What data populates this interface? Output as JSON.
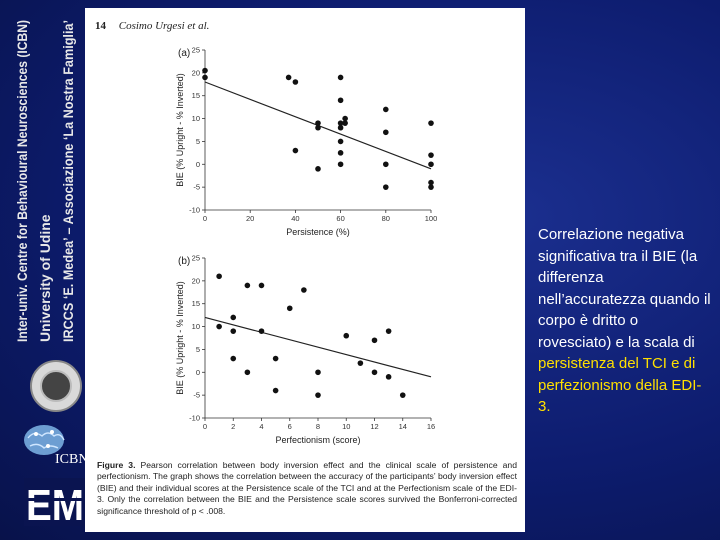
{
  "sidebar": {
    "lines": [
      "Inter-univ. Centre for Behavioural Neurosciences (ICBN)",
      "University of Udine",
      "IRCCS ‘E. Medea’ – Associazione ‘La Nostra Famiglia’"
    ],
    "icbn_logo_text": "ICBN",
    "em_logo_text": "EM",
    "seal_icon": "university-seal-icon",
    "brain_icon": "brain-logo-icon"
  },
  "paper": {
    "page_number": "14",
    "author": "Cosimo Urgesi et al.",
    "caption_label": "Figure 3.",
    "caption_text": "Pearson correlation between body inversion effect and the clinical scale of persistence and perfectionism. The graph shows the correlation between the accuracy of the participants’ body inversion effect (BIE) and their individual scores at the Persistence scale of the TCI and at the Perfectionism scale of the EDI-3. Only the correlation between the BIE and the Persistence scale scores survived the Bonferroni-corrected significance threshold of p < .008."
  },
  "chart_data": [
    {
      "type": "scatter",
      "panel": "(a)",
      "xlabel": "Persistence (%)",
      "ylabel": "BIE (% Upright - % Inverted)",
      "xlim": [
        0,
        100
      ],
      "ylim": [
        -10,
        25
      ],
      "xticks": [
        0,
        20,
        40,
        60,
        80,
        100
      ],
      "yticks": [
        -10,
        -5,
        0,
        5,
        10,
        15,
        20,
        25
      ],
      "points": [
        [
          0,
          20.5
        ],
        [
          0,
          19
        ],
        [
          37,
          19
        ],
        [
          40,
          18
        ],
        [
          40,
          3
        ],
        [
          50,
          8
        ],
        [
          50,
          9
        ],
        [
          50,
          -1
        ],
        [
          60,
          19
        ],
        [
          60,
          14
        ],
        [
          60,
          9
        ],
        [
          60,
          8
        ],
        [
          60,
          5
        ],
        [
          60,
          2.5
        ],
        [
          60,
          0
        ],
        [
          62,
          9
        ],
        [
          62,
          10
        ],
        [
          80,
          12
        ],
        [
          80,
          7
        ],
        [
          80,
          0
        ],
        [
          80,
          -5
        ],
        [
          100,
          9
        ],
        [
          100,
          2
        ],
        [
          100,
          0
        ],
        [
          100,
          -4
        ],
        [
          100,
          -5
        ]
      ],
      "fit_line": [
        [
          0,
          18
        ],
        [
          100,
          -1
        ]
      ]
    },
    {
      "type": "scatter",
      "panel": "(b)",
      "xlabel": "Perfectionism (score)",
      "ylabel": "BIE (% Upright - % Inverted)",
      "xlim": [
        0,
        16
      ],
      "ylim": [
        -10,
        25
      ],
      "xticks": [
        0,
        2,
        4,
        6,
        8,
        10,
        12,
        14,
        16
      ],
      "yticks": [
        -10,
        -5,
        0,
        5,
        10,
        15,
        20,
        25
      ],
      "points": [
        [
          1,
          21
        ],
        [
          1,
          10
        ],
        [
          2,
          12
        ],
        [
          2,
          9
        ],
        [
          2,
          3
        ],
        [
          3,
          19
        ],
        [
          3,
          0
        ],
        [
          4,
          19
        ],
        [
          4,
          9
        ],
        [
          5,
          3
        ],
        [
          5,
          -4
        ],
        [
          6,
          14
        ],
        [
          7,
          18
        ],
        [
          8,
          0
        ],
        [
          8,
          -5
        ],
        [
          10,
          8
        ],
        [
          11,
          2
        ],
        [
          12,
          7
        ],
        [
          12,
          0
        ],
        [
          13,
          9
        ],
        [
          13,
          -1
        ],
        [
          14,
          -5
        ]
      ],
      "fit_line": [
        [
          0,
          12
        ],
        [
          16,
          -1
        ]
      ]
    }
  ],
  "bullet": {
    "normal_text": "Correlazione negativa significativa tra il BIE (la differenza nell’accuratezza quando il corpo è dritto o rovesciato) e la scala di",
    "highlight_text": "persistenza del TCI e di perfezionismo della EDI-3."
  },
  "colors": {
    "background": "#0d1c6e",
    "text": "#ffffff",
    "highlight": "#ffe000"
  }
}
